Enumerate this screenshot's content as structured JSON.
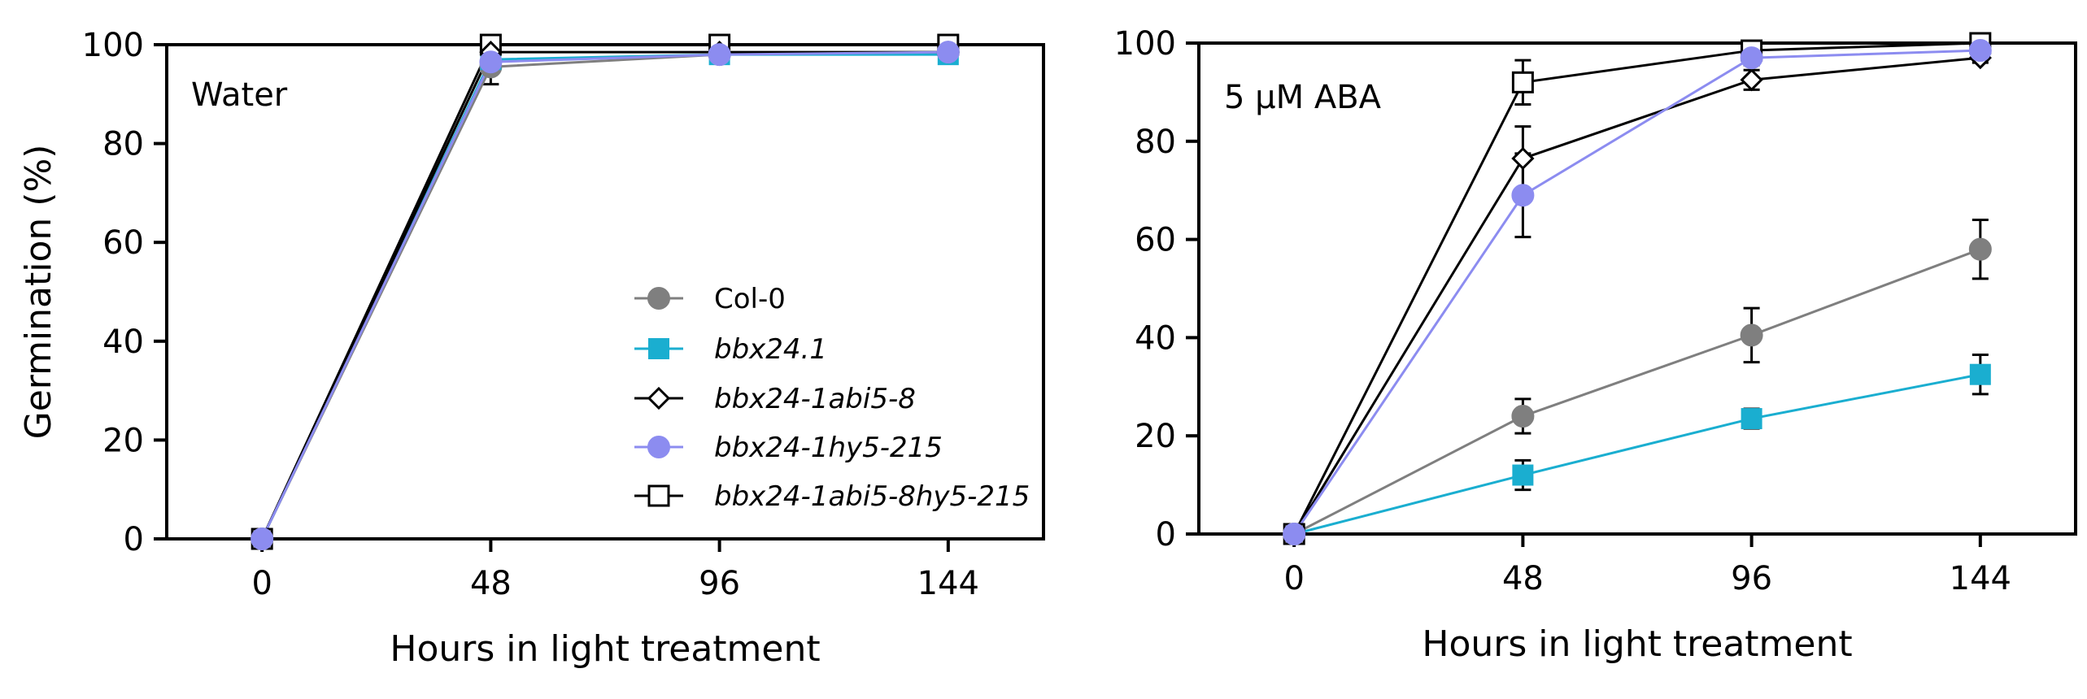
{
  "chart_data": [
    {
      "type": "line",
      "panel_label": "Water",
      "xlabel": "Hours in light treatment",
      "ylabel": "Germination (%)",
      "x": [
        0,
        48,
        96,
        144
      ],
      "xticks": [
        "0",
        "48",
        "96",
        "144"
      ],
      "yticks": [
        "0",
        "20",
        "40",
        "60",
        "80",
        "100"
      ],
      "ylim": [
        0,
        100
      ],
      "xlim": [
        -20,
        164
      ],
      "grid": false,
      "legend_position": "lower-right",
      "series": [
        {
          "name": "Col-0",
          "values": [
            0,
            95.5,
            98,
            98.5
          ],
          "errors": [
            0,
            3.5,
            0.5,
            0.5
          ],
          "color": "#7f7f7f",
          "marker": "circle-filled"
        },
        {
          "name": "bbx24.1",
          "values": [
            0,
            97,
            98,
            98
          ],
          "errors": [
            0,
            0,
            0,
            0
          ],
          "color": "#1aaed0",
          "marker": "square-filled"
        },
        {
          "name": "bbx24-1abi5-8",
          "values": [
            0,
            98.5,
            98.5,
            98.5
          ],
          "errors": [
            0,
            0,
            0,
            0
          ],
          "color": "#000000",
          "marker": "diamond-open"
        },
        {
          "name": "bbx24-1hy5-215",
          "values": [
            0,
            96.5,
            98,
            98.5
          ],
          "errors": [
            0,
            0,
            0,
            0
          ],
          "color": "#8c8cf0",
          "marker": "circle-filled"
        },
        {
          "name": "bbx24-1abi5-8hy5-215",
          "values": [
            0,
            100,
            100,
            100
          ],
          "errors": [
            0,
            0,
            0,
            0
          ],
          "color": "#000000",
          "marker": "square-open"
        }
      ]
    },
    {
      "type": "line",
      "panel_label": "5 μM ABA",
      "xlabel": "Hours in light treatment",
      "ylabel": "",
      "x": [
        0,
        48,
        96,
        144
      ],
      "xticks": [
        "0",
        "48",
        "96",
        "144"
      ],
      "yticks": [
        "0",
        "20",
        "40",
        "60",
        "80",
        "100"
      ],
      "ylim": [
        0,
        100
      ],
      "xlim": [
        -20,
        164
      ],
      "grid": false,
      "series": [
        {
          "name": "Col-0",
          "values": [
            0,
            24,
            40.5,
            58
          ],
          "errors": [
            0,
            3.5,
            5.5,
            6
          ],
          "color": "#7f7f7f",
          "marker": "circle-filled"
        },
        {
          "name": "bbx24.1",
          "values": [
            0,
            12,
            23.5,
            32.5
          ],
          "errors": [
            0,
            3,
            2,
            4
          ],
          "color": "#1aaed0",
          "marker": "square-filled"
        },
        {
          "name": "bbx24-1abi5-8",
          "values": [
            0,
            76.5,
            92.5,
            97
          ],
          "errors": [
            0,
            6.5,
            2,
            1
          ],
          "color": "#000000",
          "marker": "diamond-open"
        },
        {
          "name": "bbx24-1hy5-215",
          "values": [
            0,
            69,
            97,
            98.5
          ],
          "errors": [
            0,
            8.5,
            1.5,
            0.5
          ],
          "color": "#8c8cf0",
          "marker": "circle-filled"
        },
        {
          "name": "bbx24-1abi5-8hy5-215",
          "values": [
            0,
            92,
            98.5,
            100
          ],
          "errors": [
            0,
            4.5,
            1,
            0
          ],
          "color": "#000000",
          "marker": "square-open"
        }
      ]
    }
  ]
}
